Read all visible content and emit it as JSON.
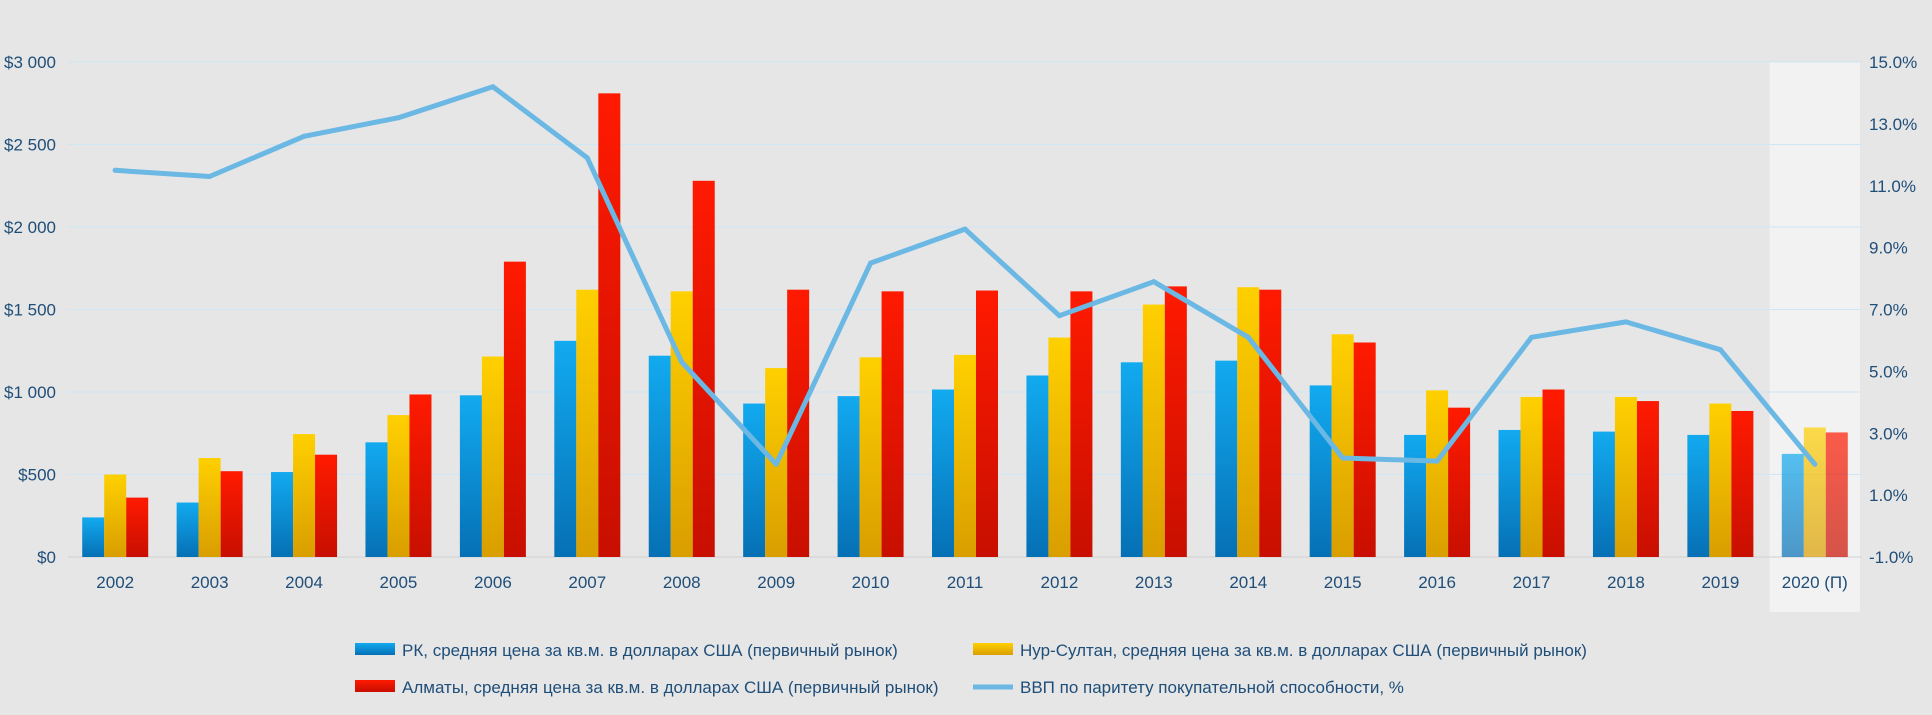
{
  "chart_data": {
    "type": "bar",
    "categories": [
      "2002",
      "2003",
      "2004",
      "2005",
      "2006",
      "2007",
      "2008",
      "2009",
      "2010",
      "2011",
      "2012",
      "2013",
      "2014",
      "2015",
      "2016",
      "2017",
      "2018",
      "2019",
      "2020 (П)"
    ],
    "forecast_category": "2020 (П)",
    "series": [
      {
        "name": "РК, средняя цена за кв.м. в долларах США (первичный рынок)",
        "type": "bar",
        "axis": "left",
        "color": "#0a9be0",
        "values": [
          240,
          330,
          515,
          695,
          980,
          1310,
          1220,
          930,
          975,
          1015,
          1100,
          1180,
          1190,
          1040,
          740,
          770,
          760,
          740,
          625
        ]
      },
      {
        "name": "Нур-Султан, средняя цена за кв.м. в долларах США (первичный рынок)",
        "type": "bar",
        "axis": "left",
        "color": "#ffc800",
        "values": [
          500,
          600,
          745,
          860,
          1215,
          1620,
          1610,
          1145,
          1210,
          1225,
          1330,
          1530,
          1635,
          1350,
          1010,
          970,
          970,
          930,
          785
        ]
      },
      {
        "name": "Алматы, средняя цена за кв.м. в долларах США (первичный рынок)",
        "type": "bar",
        "axis": "left",
        "color": "#ff1a00",
        "values": [
          360,
          520,
          620,
          985,
          1790,
          2810,
          2280,
          1620,
          1610,
          1615,
          1610,
          1640,
          1620,
          1300,
          905,
          1015,
          945,
          885,
          755
        ]
      },
      {
        "name": "ВВП по паритету покупательной способности, %",
        "type": "line",
        "axis": "right",
        "color": "#6ab8e3",
        "values": [
          11.5,
          11.3,
          12.6,
          13.2,
          14.2,
          11.9,
          5.3,
          2.0,
          8.5,
          9.6,
          6.8,
          7.9,
          6.1,
          2.2,
          2.1,
          6.1,
          6.6,
          5.7,
          2.0
        ]
      }
    ],
    "y_left": {
      "ylim": [
        0,
        3000
      ],
      "ticks": [
        0,
        500,
        1000,
        1500,
        2000,
        2500,
        3000
      ],
      "tick_labels": [
        "$0",
        "$500",
        "$1 000",
        "$1 500",
        "$2 000",
        "$2 500",
        "$3 000"
      ]
    },
    "y_right": {
      "ylim": [
        -1.0,
        15.0
      ],
      "ticks": [
        -1.0,
        1.0,
        3.0,
        5.0,
        7.0,
        9.0,
        11.0,
        13.0,
        15.0
      ],
      "tick_labels": [
        "-1.0%",
        "1.0%",
        "3.0%",
        "5.0%",
        "7.0%",
        "9.0%",
        "11.0%",
        "13.0%",
        "15.0%"
      ]
    },
    "title": "",
    "xlabel": "",
    "ylabel": "",
    "grid": true,
    "legend_position": "bottom"
  }
}
